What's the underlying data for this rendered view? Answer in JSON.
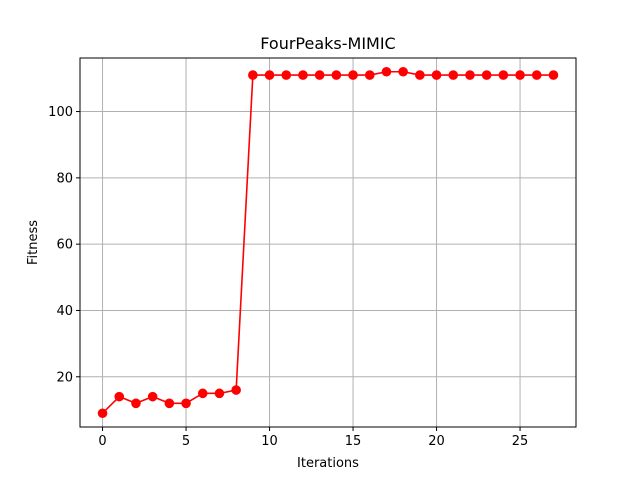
{
  "chart_data": {
    "type": "line",
    "title": "FourPeaks-MIMIC",
    "xlabel": "Iterations",
    "ylabel": "Fitness",
    "xlim": [
      -1.35,
      28.35
    ],
    "ylim": [
      4.85,
      116.15
    ],
    "xticks": [
      0,
      5,
      10,
      15,
      20,
      25
    ],
    "yticks": [
      20,
      40,
      60,
      80,
      100
    ],
    "grid": true,
    "legend": "none",
    "series": [
      {
        "color": "#ff0000",
        "marker": "circle",
        "x": [
          0,
          1,
          2,
          3,
          4,
          5,
          6,
          7,
          8,
          9,
          10,
          11,
          12,
          13,
          14,
          15,
          16,
          17,
          18,
          19,
          20,
          21,
          22,
          23,
          24,
          25,
          26,
          27
        ],
        "y": [
          9,
          14,
          12,
          14,
          12,
          12,
          15,
          15,
          16,
          111,
          111,
          111,
          111,
          111,
          111,
          111,
          111,
          112,
          112,
          111,
          111,
          111,
          111,
          111,
          111,
          111,
          111,
          111
        ]
      }
    ]
  }
}
